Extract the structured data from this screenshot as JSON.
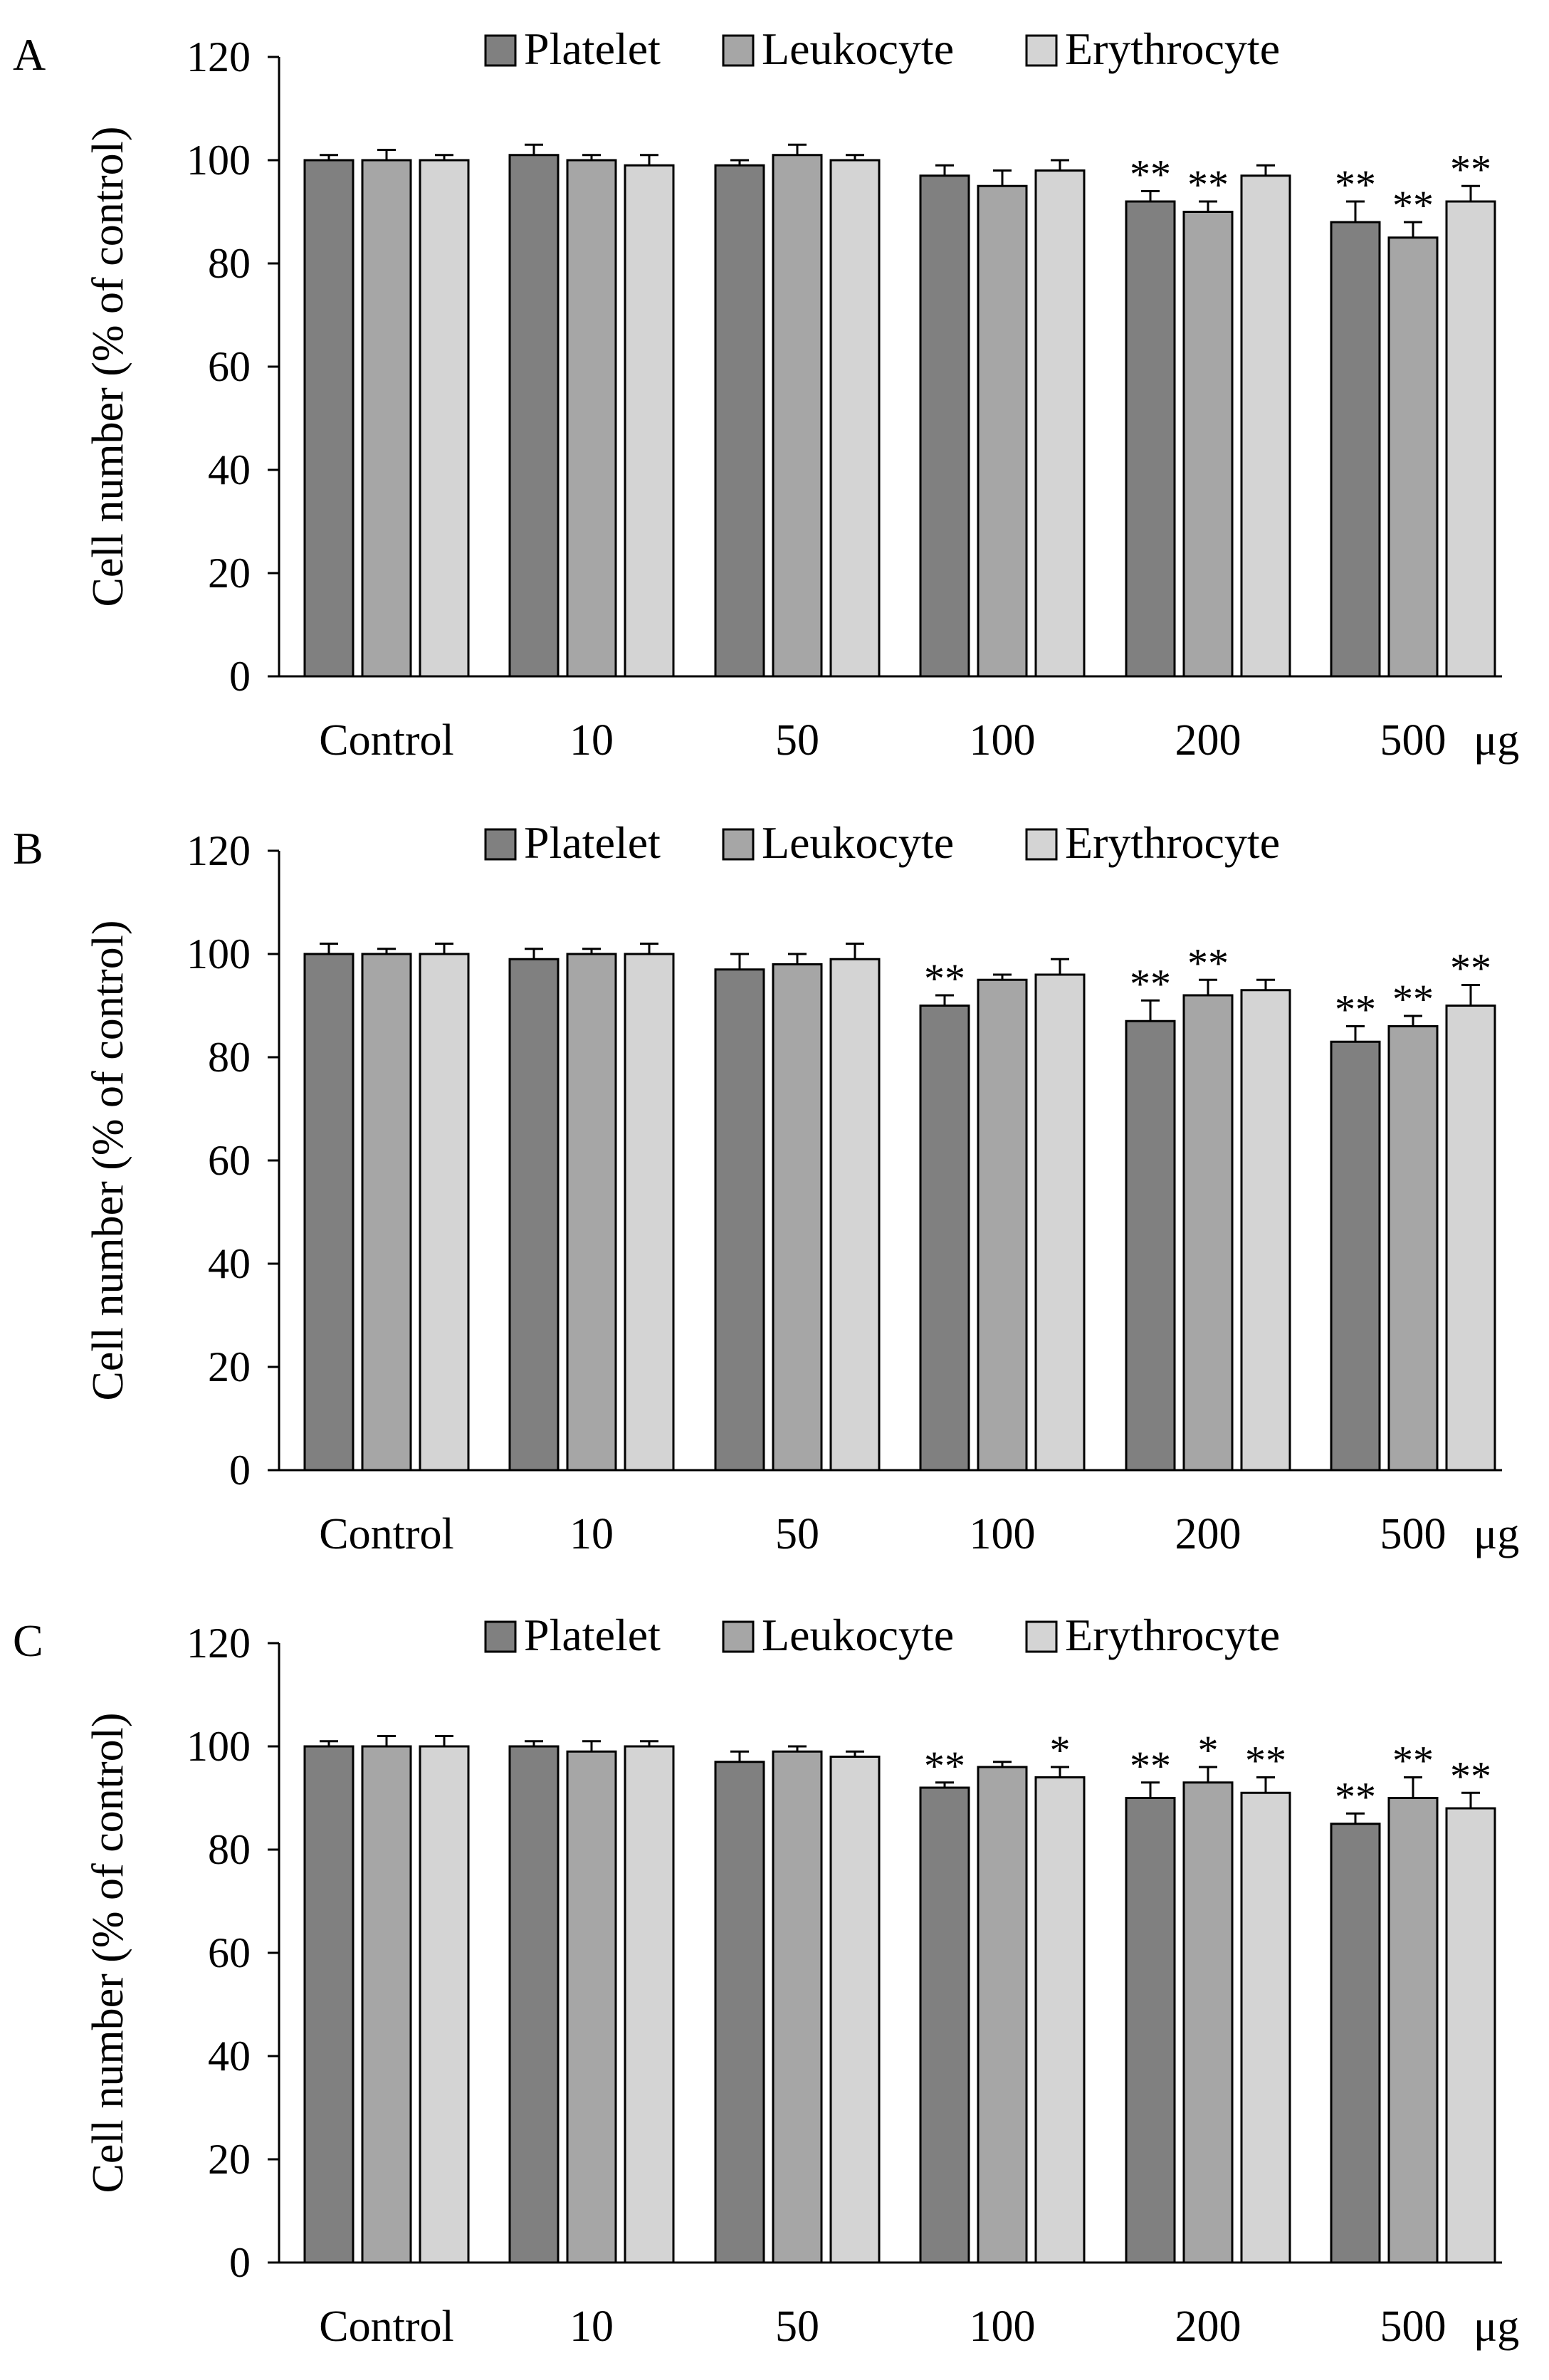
{
  "colors": {
    "Platelet": "#808080",
    "Leukocyte": "#a6a6a6",
    "Erythrocyte": "#d4d4d4",
    "stroke": "#000000"
  },
  "unit_label": "μg",
  "chart_data": [
    {
      "panel_label": "A",
      "type": "bar",
      "title": "",
      "ylabel": "Cell number (% of control)",
      "xlabel": "",
      "ylim": [
        0,
        120
      ],
      "yticks": [
        0,
        20,
        40,
        60,
        80,
        100,
        120
      ],
      "categories": [
        "Control",
        "10",
        "50",
        "100",
        "200",
        "500"
      ],
      "legend": [
        "Platelet",
        "Leukocyte",
        "Erythrocyte"
      ],
      "series": [
        {
          "name": "Platelet",
          "values": [
            100,
            101,
            99,
            97,
            92,
            88
          ],
          "errors": [
            1,
            2,
            1,
            2,
            2,
            4
          ],
          "sig": [
            "",
            "",
            "",
            "",
            "**",
            "**"
          ]
        },
        {
          "name": "Leukocyte",
          "values": [
            100,
            100,
            101,
            95,
            90,
            85
          ],
          "errors": [
            2,
            1,
            2,
            3,
            2,
            3
          ],
          "sig": [
            "",
            "",
            "",
            "",
            "**",
            "**"
          ]
        },
        {
          "name": "Erythrocyte",
          "values": [
            100,
            99,
            100,
            98,
            97,
            92
          ],
          "errors": [
            1,
            2,
            1,
            2,
            2,
            3
          ],
          "sig": [
            "",
            "",
            "",
            "",
            "",
            "**"
          ]
        }
      ]
    },
    {
      "panel_label": "B",
      "type": "bar",
      "title": "",
      "ylabel": "Cell number (% of control)",
      "xlabel": "",
      "ylim": [
        0,
        120
      ],
      "yticks": [
        0,
        20,
        40,
        60,
        80,
        100,
        120
      ],
      "categories": [
        "Control",
        "10",
        "50",
        "100",
        "200",
        "500"
      ],
      "legend": [
        "Platelet",
        "Leukocyte",
        "Erythrocyte"
      ],
      "series": [
        {
          "name": "Platelet",
          "values": [
            100,
            99,
            97,
            90,
            87,
            83
          ],
          "errors": [
            2,
            2,
            3,
            2,
            4,
            3
          ],
          "sig": [
            "",
            "",
            "",
            "**",
            "**",
            "**"
          ]
        },
        {
          "name": "Leukocyte",
          "values": [
            100,
            100,
            98,
            95,
            92,
            86
          ],
          "errors": [
            1,
            1,
            2,
            1,
            3,
            2
          ],
          "sig": [
            "",
            "",
            "",
            "",
            "**",
            "**"
          ]
        },
        {
          "name": "Erythrocyte",
          "values": [
            100,
            100,
            99,
            96,
            93,
            90
          ],
          "errors": [
            2,
            2,
            3,
            3,
            2,
            4
          ],
          "sig": [
            "",
            "",
            "",
            "",
            "",
            "**"
          ]
        }
      ]
    },
    {
      "panel_label": "C",
      "type": "bar",
      "title": "",
      "ylabel": "Cell number (% of control)",
      "xlabel": "",
      "ylim": [
        0,
        120
      ],
      "yticks": [
        0,
        20,
        40,
        60,
        80,
        100,
        120
      ],
      "categories": [
        "Control",
        "10",
        "50",
        "100",
        "200",
        "500"
      ],
      "legend": [
        "Platelet",
        "Leukocyte",
        "Erythrocyte"
      ],
      "series": [
        {
          "name": "Platelet",
          "values": [
            100,
            100,
            97,
            92,
            90,
            85
          ],
          "errors": [
            1,
            1,
            2,
            1,
            3,
            2
          ],
          "sig": [
            "",
            "",
            "",
            "**",
            "**",
            "**"
          ]
        },
        {
          "name": "Leukocyte",
          "values": [
            100,
            99,
            99,
            96,
            93,
            90
          ],
          "errors": [
            2,
            2,
            1,
            1,
            3,
            4
          ],
          "sig": [
            "",
            "",
            "",
            "",
            "*",
            "**"
          ]
        },
        {
          "name": "Erythrocyte",
          "values": [
            100,
            100,
            98,
            94,
            91,
            88
          ],
          "errors": [
            2,
            1,
            1,
            2,
            3,
            3
          ],
          "sig": [
            "",
            "",
            "",
            "*",
            "**",
            "**"
          ]
        }
      ]
    }
  ]
}
